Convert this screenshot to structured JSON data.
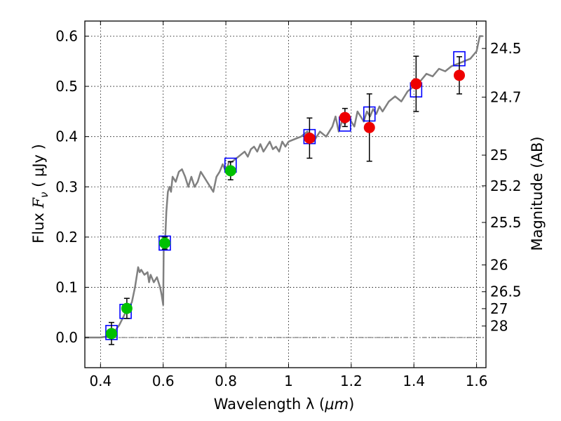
{
  "chart_data": {
    "type": "scatter",
    "title": "",
    "xlabel_prefix": "Wavelength  λ (",
    "xlabel_unit": "μm",
    "xlabel_suffix": ")",
    "ylabel_text": "Flux  ",
    "ylabel_symbol": "F",
    "ylabel_sub": "ν",
    "ylabel_unit": "  ( μJy )",
    "y2label": "Magnitude (AB)",
    "xlim": [
      0.35,
      1.63
    ],
    "ylim": [
      -0.06,
      0.63
    ],
    "xticks": [
      0.4,
      0.6,
      0.8,
      1.0,
      1.2,
      1.4,
      1.6
    ],
    "xtick_labels": [
      "0.4",
      "0.6",
      "0.8",
      "1",
      "1.2",
      "1.4",
      "1.6"
    ],
    "yticks": [
      0.0,
      0.1,
      0.2,
      0.3,
      0.4,
      0.5,
      0.6
    ],
    "ytick_labels": [
      "0.0",
      "0.1",
      "0.2",
      "0.3",
      "0.4",
      "0.5",
      "0.6"
    ],
    "y2ticks": [
      {
        "label": "24.5",
        "flux": 0.5754
      },
      {
        "label": "24.7",
        "flux": 0.4786
      },
      {
        "label": "25",
        "flux": 0.3631
      },
      {
        "label": "25.2",
        "flux": 0.302
      },
      {
        "label": "25.5",
        "flux": 0.2291
      },
      {
        "label": "26",
        "flux": 0.1445
      },
      {
        "label": "26.5",
        "flux": 0.0912
      },
      {
        "label": "27",
        "flux": 0.0575
      },
      {
        "label": "28",
        "flux": 0.0229
      }
    ],
    "zero_line": 0.0,
    "colors": {
      "model": "#808080",
      "photometry": "#0000ff",
      "green": "#00c000",
      "red": "#ee0000",
      "errorbar": "#000000"
    },
    "series": [
      {
        "name": "model spectrum",
        "kind": "line",
        "x": [
          0.35,
          0.4,
          0.42,
          0.44,
          0.46,
          0.48,
          0.5,
          0.51,
          0.52,
          0.525,
          0.53,
          0.54,
          0.55,
          0.555,
          0.56,
          0.57,
          0.58,
          0.59,
          0.595,
          0.6,
          0.602,
          0.605,
          0.61,
          0.615,
          0.62,
          0.625,
          0.63,
          0.64,
          0.65,
          0.66,
          0.67,
          0.68,
          0.69,
          0.7,
          0.71,
          0.72,
          0.73,
          0.74,
          0.75,
          0.76,
          0.77,
          0.78,
          0.79,
          0.8,
          0.81,
          0.82,
          0.83,
          0.84,
          0.85,
          0.86,
          0.87,
          0.88,
          0.89,
          0.9,
          0.91,
          0.92,
          0.93,
          0.94,
          0.95,
          0.96,
          0.97,
          0.98,
          0.99,
          1.0,
          1.02,
          1.04,
          1.06,
          1.08,
          1.1,
          1.12,
          1.14,
          1.15,
          1.16,
          1.17,
          1.18,
          1.19,
          1.2,
          1.21,
          1.22,
          1.23,
          1.24,
          1.25,
          1.26,
          1.27,
          1.28,
          1.29,
          1.3,
          1.32,
          1.34,
          1.36,
          1.38,
          1.4,
          1.42,
          1.44,
          1.46,
          1.48,
          1.5,
          1.52,
          1.54,
          1.56,
          1.58,
          1.6,
          1.61,
          1.62
        ],
        "y": [
          0.0,
          0.0,
          0.002,
          0.008,
          0.025,
          0.05,
          0.07,
          0.1,
          0.14,
          0.13,
          0.135,
          0.125,
          0.13,
          0.11,
          0.125,
          0.11,
          0.12,
          0.1,
          0.085,
          0.065,
          0.2,
          0.175,
          0.25,
          0.29,
          0.3,
          0.29,
          0.32,
          0.31,
          0.33,
          0.335,
          0.32,
          0.3,
          0.32,
          0.3,
          0.31,
          0.33,
          0.32,
          0.31,
          0.3,
          0.29,
          0.32,
          0.33,
          0.345,
          0.33,
          0.35,
          0.35,
          0.355,
          0.36,
          0.365,
          0.37,
          0.36,
          0.375,
          0.38,
          0.37,
          0.385,
          0.37,
          0.38,
          0.39,
          0.375,
          0.38,
          0.37,
          0.39,
          0.38,
          0.39,
          0.395,
          0.4,
          0.41,
          0.39,
          0.41,
          0.4,
          0.42,
          0.44,
          0.41,
          0.43,
          0.425,
          0.44,
          0.43,
          0.42,
          0.45,
          0.44,
          0.43,
          0.45,
          0.44,
          0.455,
          0.445,
          0.46,
          0.45,
          0.47,
          0.48,
          0.47,
          0.49,
          0.5,
          0.51,
          0.525,
          0.52,
          0.535,
          0.53,
          0.54,
          0.545,
          0.55,
          0.555,
          0.57,
          0.6,
          0.6
        ]
      },
      {
        "name": "photometry",
        "kind": "open-square",
        "points": [
          {
            "x": 0.435,
            "y": 0.01
          },
          {
            "x": 0.48,
            "y": 0.052
          },
          {
            "x": 0.605,
            "y": 0.188
          },
          {
            "x": 0.815,
            "y": 0.343
          },
          {
            "x": 1.067,
            "y": 0.4
          },
          {
            "x": 1.18,
            "y": 0.425
          },
          {
            "x": 1.258,
            "y": 0.445
          },
          {
            "x": 1.407,
            "y": 0.493
          },
          {
            "x": 1.545,
            "y": 0.555
          }
        ]
      },
      {
        "name": "green measurements",
        "kind": "filled-circle",
        "points": [
          {
            "x": 0.435,
            "y": 0.008,
            "err": 0.022
          },
          {
            "x": 0.484,
            "y": 0.058,
            "err": 0.02
          },
          {
            "x": 0.605,
            "y": 0.188,
            "err": 0.012
          },
          {
            "x": 0.815,
            "y": 0.332,
            "err": 0.018
          }
        ]
      },
      {
        "name": "red measurements",
        "kind": "filled-circle",
        "points": [
          {
            "x": 1.067,
            "y": 0.397,
            "err": 0.04
          },
          {
            "x": 1.18,
            "y": 0.438,
            "err": 0.018
          },
          {
            "x": 1.258,
            "y": 0.418,
            "err": 0.067
          },
          {
            "x": 1.407,
            "y": 0.505,
            "err": 0.055
          },
          {
            "x": 1.545,
            "y": 0.522,
            "err": 0.037
          }
        ]
      }
    ]
  }
}
